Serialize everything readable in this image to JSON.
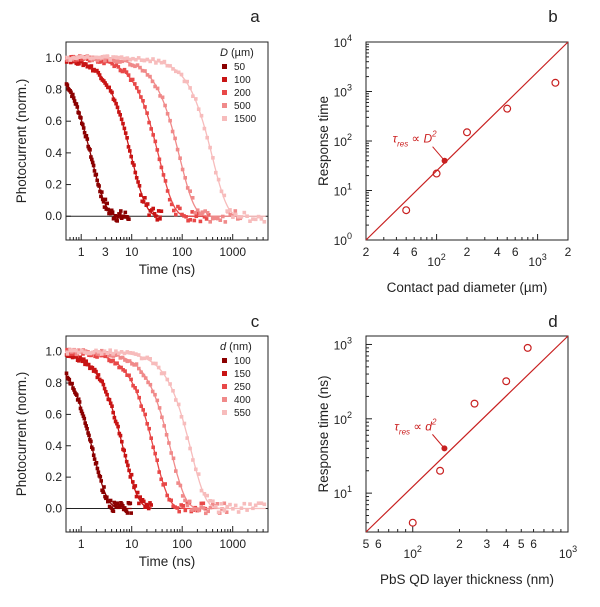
{
  "colors": {
    "series": [
      "#8b0000",
      "#c81414",
      "#e84848",
      "#f08a8a",
      "#f7bcbc"
    ],
    "fit_line": "#c82020",
    "axis": "#222222",
    "baseline": "#222222"
  },
  "chart_data": [
    {
      "panel": "a",
      "type": "scatter",
      "xscale": "log",
      "xlim": [
        0.5,
        5000
      ],
      "ylim": [
        -0.15,
        1.1
      ],
      "xlabel": "Time (ns)",
      "ylabel": "Photocurrent (norm.)",
      "xticks": [
        {
          "v": 1,
          "label": "1"
        },
        {
          "v": 3,
          "label": "3"
        },
        {
          "v": 10,
          "label": "10"
        },
        {
          "v": 100,
          "label": "100"
        },
        {
          "v": 1000,
          "label": "1000"
        }
      ],
      "yticks": [
        {
          "v": 0.0,
          "label": "0.0"
        },
        {
          "v": 0.2,
          "label": "0.2"
        },
        {
          "v": 0.4,
          "label": "0.4"
        },
        {
          "v": 0.6,
          "label": "0.6"
        },
        {
          "v": 0.8,
          "label": "0.8"
        },
        {
          "v": 1.0,
          "label": "1.0"
        }
      ],
      "legend": {
        "title_var": "D",
        "title_unit": " (µm)",
        "position": "top-right",
        "labels": [
          "50",
          "100",
          "200",
          "500",
          "1500"
        ]
      },
      "series": [
        {
          "name": "50",
          "tau": 1.6,
          "tmax": 9
        },
        {
          "name": "100",
          "tau": 10,
          "tmax": 40
        },
        {
          "name": "200",
          "tau": 35,
          "tmax": 350
        },
        {
          "name": "500",
          "tau": 90,
          "tmax": 1500
        },
        {
          "name": "1500",
          "tau": 400,
          "tmax": 4500
        }
      ]
    },
    {
      "panel": "b",
      "type": "scatter",
      "xscale": "log",
      "yscale": "log",
      "xlim": [
        20,
        2000
      ],
      "ylim": [
        1,
        10000
      ],
      "xlabel": "Contact pad diameter (µm)",
      "ylabel": "Response time",
      "xticks": [
        {
          "v": 20,
          "label": "2"
        },
        {
          "v": 40,
          "label": "4"
        },
        {
          "v": 60,
          "label": "6"
        },
        {
          "v": 200,
          "label": "2"
        },
        {
          "v": 400,
          "label": "4"
        },
        {
          "v": 600,
          "label": "6"
        },
        {
          "v": 2000,
          "label": "2"
        }
      ],
      "xdecades": [
        {
          "v": 100,
          "base": "10",
          "exp": "2"
        },
        {
          "v": 1000,
          "base": "10",
          "exp": "3"
        }
      ],
      "ydecades": [
        {
          "v": 1,
          "base": "10",
          "exp": "0"
        },
        {
          "v": 10,
          "base": "10",
          "exp": "1"
        },
        {
          "v": 100,
          "base": "10",
          "exp": "2"
        },
        {
          "v": 1000,
          "base": "10",
          "exp": "3"
        },
        {
          "v": 10000,
          "base": "10",
          "exp": "4"
        }
      ],
      "points": [
        {
          "x": 50,
          "y": 4
        },
        {
          "x": 100,
          "y": 22
        },
        {
          "x": 200,
          "y": 150
        },
        {
          "x": 500,
          "y": 450
        },
        {
          "x": 1500,
          "y": 1500
        }
      ],
      "marker": {
        "x": 120,
        "y": 40
      },
      "fit": {
        "from": [
          20,
          1
        ],
        "to": [
          2000,
          10000
        ]
      },
      "annotation": {
        "tau": "τ",
        "sub": "res",
        "rel": " ∝ ",
        "var": "D",
        "exp": "2"
      }
    },
    {
      "panel": "c",
      "type": "scatter",
      "xscale": "log",
      "xlim": [
        0.5,
        5000
      ],
      "ylim": [
        -0.15,
        1.1
      ],
      "xlabel": "Time (ns)",
      "ylabel": "Photocurrent (norm.)",
      "xticks": [
        {
          "v": 1,
          "label": "1"
        },
        {
          "v": 10,
          "label": "10"
        },
        {
          "v": 100,
          "label": "100"
        },
        {
          "v": 1000,
          "label": "1000"
        }
      ],
      "yticks": [
        {
          "v": 0.0,
          "label": "0.0"
        },
        {
          "v": 0.2,
          "label": "0.2"
        },
        {
          "v": 0.4,
          "label": "0.4"
        },
        {
          "v": 0.6,
          "label": "0.6"
        },
        {
          "v": 0.8,
          "label": "0.8"
        },
        {
          "v": 1.0,
          "label": "1.0"
        }
      ],
      "legend": {
        "title_var": "d",
        "title_unit": " (nm)",
        "position": "top-right",
        "labels": [
          "100",
          "150",
          "250",
          "400",
          "550"
        ]
      },
      "series": [
        {
          "name": "100",
          "tau": 1.7,
          "tmax": 10
        },
        {
          "name": "150",
          "tau": 7,
          "tmax": 25
        },
        {
          "name": "250",
          "tau": 28,
          "tmax": 300
        },
        {
          "name": "400",
          "tau": 60,
          "tmax": 800
        },
        {
          "name": "550",
          "tau": 150,
          "tmax": 4500
        }
      ]
    },
    {
      "panel": "d",
      "type": "scatter",
      "xscale": "log",
      "yscale": "log",
      "xlim": [
        50,
        1000
      ],
      "ylim": [
        3,
        1300
      ],
      "xlabel": "PbS QD layer thickness (nm)",
      "ylabel": "Response time (ns)",
      "xticks": [
        {
          "v": 50,
          "label": "5"
        },
        {
          "v": 60,
          "label": "6"
        },
        {
          "v": 200,
          "label": "2"
        },
        {
          "v": 300,
          "label": "3"
        },
        {
          "v": 400,
          "label": "4"
        },
        {
          "v": 500,
          "label": "5"
        },
        {
          "v": 600,
          "label": "6"
        }
      ],
      "xdecades": [
        {
          "v": 100,
          "base": "10",
          "exp": "2"
        },
        {
          "v": 1000,
          "base": "10",
          "exp": "3"
        }
      ],
      "ydecades": [
        {
          "v": 10,
          "base": "10",
          "exp": "1"
        },
        {
          "v": 100,
          "base": "10",
          "exp": "2"
        },
        {
          "v": 1000,
          "base": "10",
          "exp": "3"
        }
      ],
      "points": [
        {
          "x": 100,
          "y": 4
        },
        {
          "x": 150,
          "y": 20
        },
        {
          "x": 250,
          "y": 160
        },
        {
          "x": 400,
          "y": 320
        },
        {
          "x": 550,
          "y": 900
        }
      ],
      "marker": {
        "x": 160,
        "y": 40
      },
      "fit": {
        "from": [
          50,
          3
        ],
        "to": [
          1000,
          1300
        ]
      },
      "annotation": {
        "tau": "τ",
        "sub": "res",
        "rel": " ∝ ",
        "var": "d",
        "exp": "2"
      }
    }
  ]
}
